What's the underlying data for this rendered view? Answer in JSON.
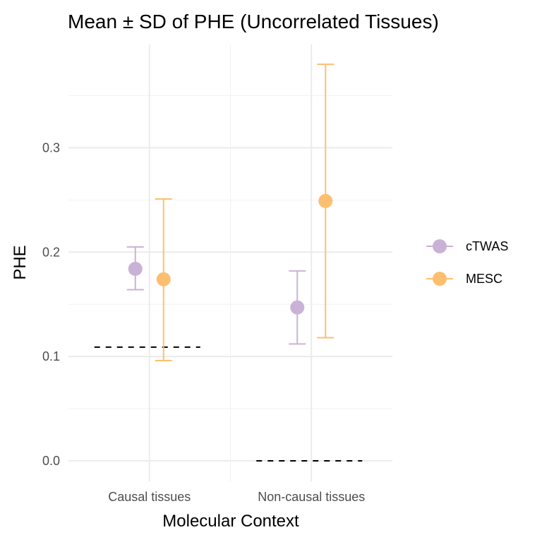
{
  "chart_data": {
    "type": "scatter",
    "title": "Mean ± SD of PHE (Uncorrelated Tissues)",
    "xlabel": "Molecular Context",
    "ylabel": "PHE",
    "categories": [
      "Causal tissues",
      "Non-causal tissues"
    ],
    "ylim": [
      -0.0196,
      0.399
    ],
    "yticks": [
      0.0,
      0.1,
      0.2,
      0.3
    ],
    "ytick_labels": [
      "0.0",
      "0.1",
      "0.2",
      "0.3"
    ],
    "grid": true,
    "legend_position": "right",
    "series": [
      {
        "name": "cTWAS",
        "color": "#CAB2D6",
        "mean": [
          0.184,
          0.147
        ],
        "lower": [
          0.164,
          0.112
        ],
        "upper": [
          0.205,
          0.182
        ]
      },
      {
        "name": "MESC",
        "color": "#FDBF6F",
        "mean": [
          0.174,
          0.249
        ],
        "lower": [
          0.096,
          0.118
        ],
        "upper": [
          0.251,
          0.38
        ]
      }
    ],
    "reference_lines": [
      {
        "category": "Causal tissues",
        "y": 0.109,
        "style": "dashed",
        "color": "#000000"
      },
      {
        "category": "Non-causal tissues",
        "y": 0.0,
        "style": "dashed",
        "color": "#000000"
      }
    ]
  }
}
